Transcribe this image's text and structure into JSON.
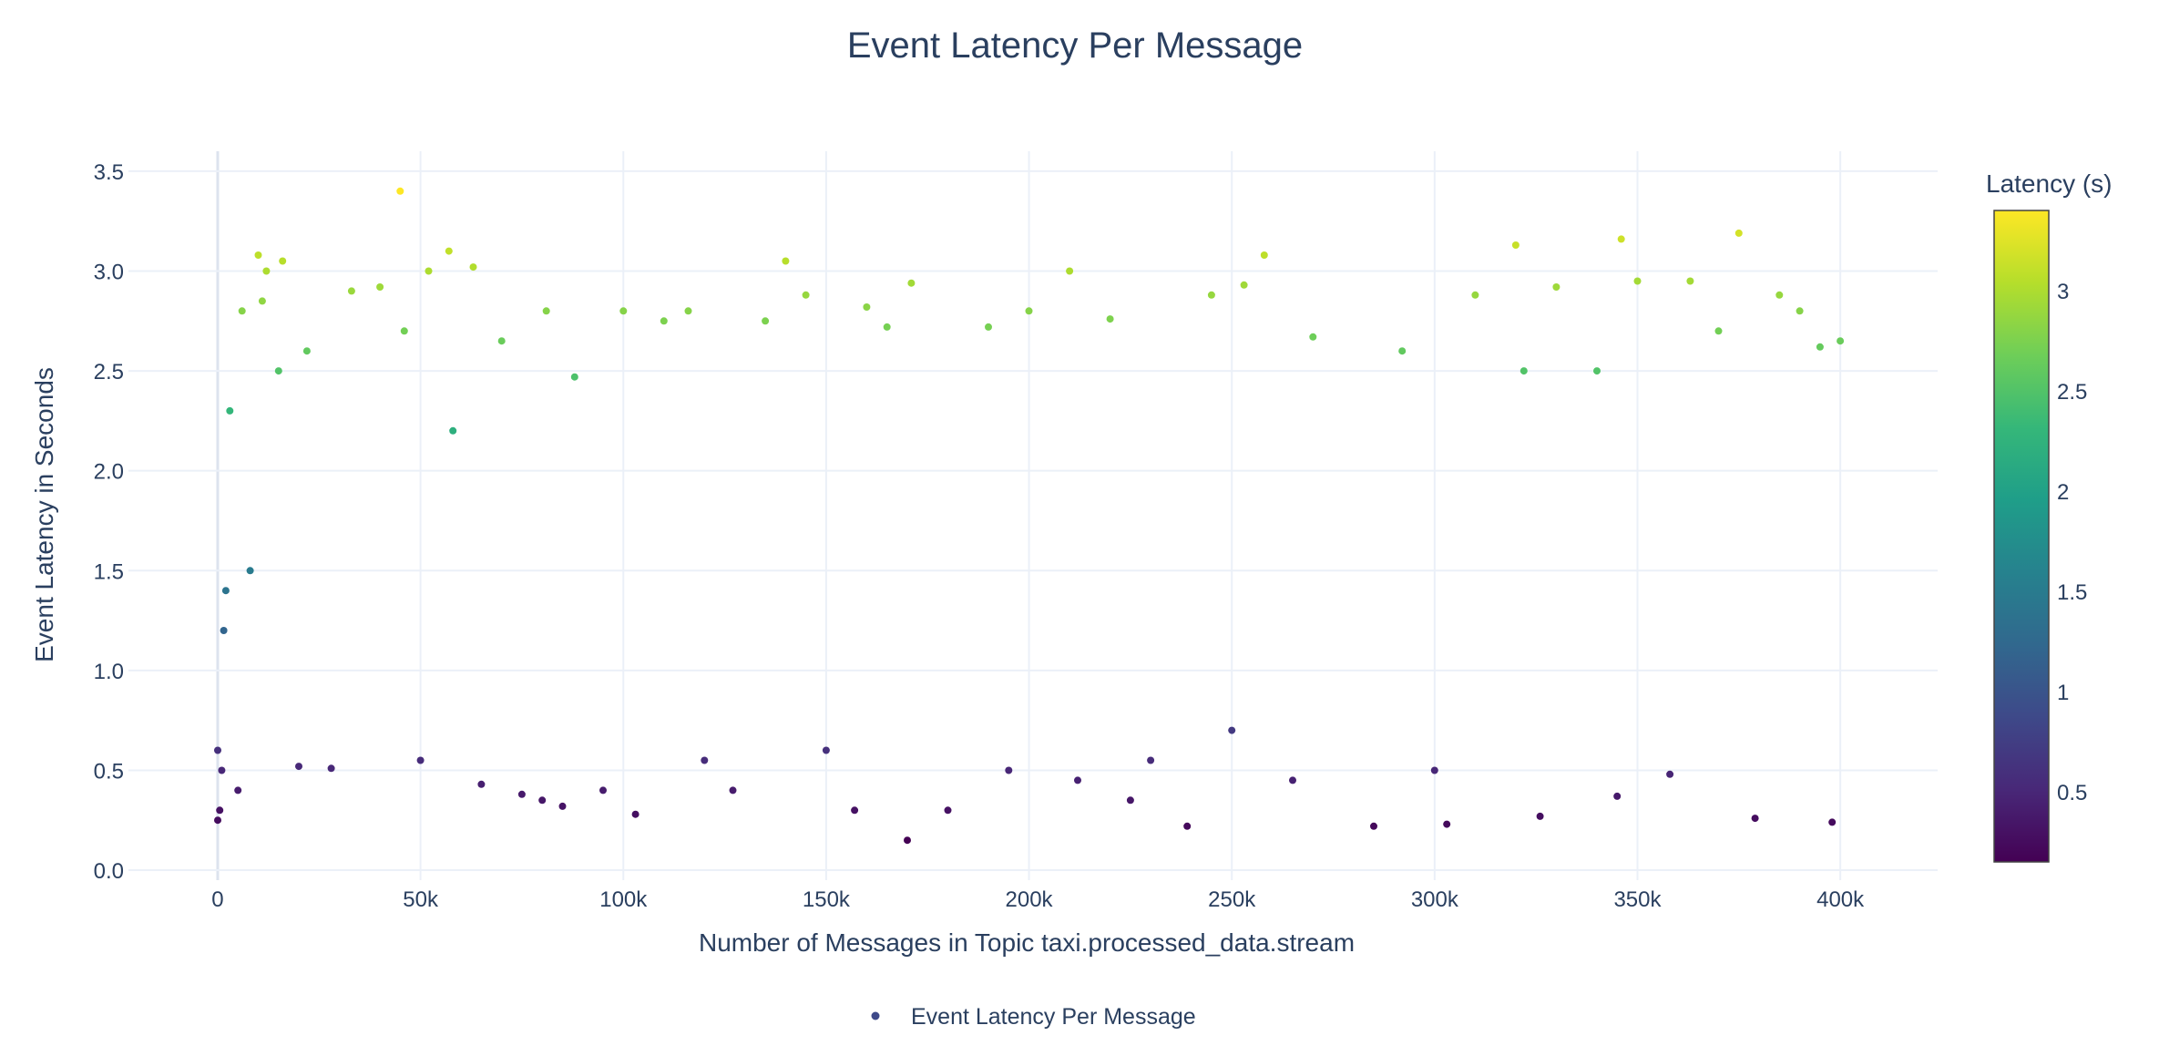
{
  "chart_data": {
    "type": "scatter",
    "title": "Event Latency Per Message",
    "xlabel": "Number of Messages in Topic taxi.processed_data.stream",
    "ylabel": "Event Latency in Seconds",
    "xlim": [
      -22000,
      424000
    ],
    "ylim": [
      -0.05,
      3.6
    ],
    "x_ticks": [
      0,
      50000,
      100000,
      150000,
      200000,
      250000,
      300000,
      350000,
      400000
    ],
    "x_tick_labels": [
      "0",
      "50k",
      "100k",
      "150k",
      "200k",
      "250k",
      "300k",
      "350k",
      "400k"
    ],
    "y_ticks": [
      0,
      0.5,
      1.0,
      1.5,
      2.0,
      2.5,
      3.0,
      3.5
    ],
    "y_tick_labels": [
      "0.0",
      "0.5",
      "1.0",
      "1.5",
      "2.0",
      "2.5",
      "3.0",
      "3.5"
    ],
    "grid": true,
    "legend": {
      "position": "bottom-center",
      "entries": [
        "Event Latency Per Message"
      ]
    },
    "colorbar": {
      "title": "Latency (s)",
      "range": [
        0.15,
        3.4
      ],
      "ticks": [
        0.5,
        1,
        1.5,
        2,
        2.5,
        3
      ],
      "tick_labels": [
        "0.5",
        "1",
        "1.5",
        "2",
        "2.5",
        "3"
      ],
      "colorscale": "Viridis"
    },
    "series": [
      {
        "name": "Event Latency Per Message",
        "points": [
          [
            0,
            0.25
          ],
          [
            0,
            0.6
          ],
          [
            500,
            0.3
          ],
          [
            1000,
            0.5
          ],
          [
            1500,
            1.2
          ],
          [
            2000,
            1.4
          ],
          [
            3000,
            2.3
          ],
          [
            5000,
            0.4
          ],
          [
            6000,
            2.8
          ],
          [
            8000,
            1.5
          ],
          [
            10000,
            3.08
          ],
          [
            11000,
            2.85
          ],
          [
            12000,
            3.0
          ],
          [
            15000,
            2.5
          ],
          [
            16000,
            3.05
          ],
          [
            20000,
            0.52
          ],
          [
            22000,
            2.6
          ],
          [
            28000,
            0.51
          ],
          [
            33000,
            2.9
          ],
          [
            40000,
            2.92
          ],
          [
            45000,
            3.4
          ],
          [
            46000,
            2.7
          ],
          [
            50000,
            0.55
          ],
          [
            52000,
            3.0
          ],
          [
            57000,
            3.1
          ],
          [
            58000,
            2.2
          ],
          [
            63000,
            3.02
          ],
          [
            65000,
            0.43
          ],
          [
            70000,
            2.65
          ],
          [
            75000,
            0.38
          ],
          [
            80000,
            0.35
          ],
          [
            81000,
            2.8
          ],
          [
            85000,
            0.32
          ],
          [
            88000,
            2.47
          ],
          [
            95000,
            0.4
          ],
          [
            100000,
            2.8
          ],
          [
            103000,
            0.28
          ],
          [
            110000,
            2.75
          ],
          [
            116000,
            2.8
          ],
          [
            120000,
            0.55
          ],
          [
            127000,
            0.4
          ],
          [
            135000,
            2.75
          ],
          [
            140000,
            3.05
          ],
          [
            145000,
            2.88
          ],
          [
            150000,
            0.6
          ],
          [
            157000,
            0.3
          ],
          [
            160000,
            2.82
          ],
          [
            165000,
            2.72
          ],
          [
            170000,
            0.15
          ],
          [
            171000,
            2.94
          ],
          [
            180000,
            0.3
          ],
          [
            190000,
            2.72
          ],
          [
            195000,
            0.5
          ],
          [
            200000,
            2.8
          ],
          [
            210000,
            3.0
          ],
          [
            212000,
            0.45
          ],
          [
            220000,
            2.76
          ],
          [
            225000,
            0.35
          ],
          [
            230000,
            0.55
          ],
          [
            239000,
            0.22
          ],
          [
            245000,
            2.88
          ],
          [
            250000,
            0.7
          ],
          [
            253000,
            2.93
          ],
          [
            258000,
            3.08
          ],
          [
            265000,
            0.45
          ],
          [
            270000,
            2.67
          ],
          [
            285000,
            0.22
          ],
          [
            292000,
            2.6
          ],
          [
            300000,
            0.5
          ],
          [
            303000,
            0.23
          ],
          [
            310000,
            2.88
          ],
          [
            320000,
            3.13
          ],
          [
            322000,
            2.5
          ],
          [
            326000,
            0.27
          ],
          [
            330000,
            2.92
          ],
          [
            340000,
            2.5
          ],
          [
            345000,
            0.37
          ],
          [
            346000,
            3.16
          ],
          [
            350000,
            2.95
          ],
          [
            358000,
            0.48
          ],
          [
            363000,
            2.95
          ],
          [
            370000,
            2.7
          ],
          [
            375000,
            3.19
          ],
          [
            379000,
            0.26
          ],
          [
            385000,
            2.88
          ],
          [
            390000,
            2.8
          ],
          [
            395000,
            2.62
          ],
          [
            398000,
            0.24
          ],
          [
            400000,
            2.65
          ]
        ]
      }
    ]
  }
}
